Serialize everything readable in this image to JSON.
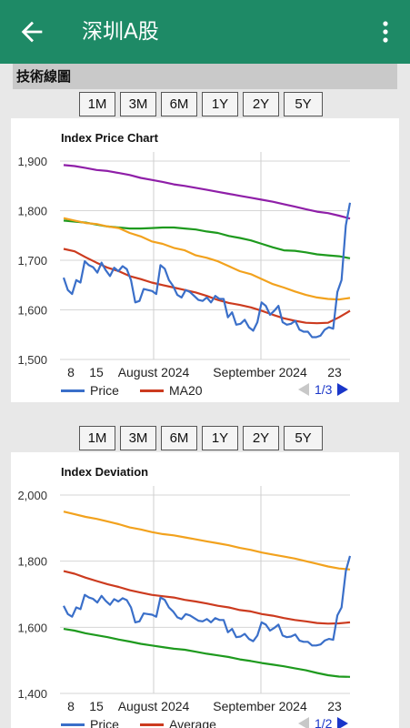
{
  "appbar": {
    "title": "深圳A股",
    "back_icon": "arrow-left-icon",
    "more_icon": "more-vert-icon",
    "color": "#1e8a66"
  },
  "section": {
    "title": "技術線圖"
  },
  "range_buttons": [
    "1M",
    "3M",
    "6M",
    "1Y",
    "2Y",
    "5Y"
  ],
  "chart1": {
    "title": "Index Price Chart",
    "legend": [
      {
        "label": "Price",
        "color": "#3a6fc9"
      },
      {
        "label": "MA20",
        "color": "#cc3b1f"
      }
    ],
    "pager": "1/3"
  },
  "chart2": {
    "title": "Index Deviation",
    "legend": [
      {
        "label": "Price",
        "color": "#3a6fc9"
      },
      {
        "label": "Average",
        "color": "#cc3b1f"
      }
    ],
    "pager": "1/2"
  },
  "chart_data": [
    {
      "type": "line",
      "title": "Index Price Chart",
      "x_ticks": [
        "8",
        "15",
        "August 2024",
        "September 2024",
        "23"
      ],
      "ylim": [
        1500,
        1900
      ],
      "y_ticks": [
        "1,500",
        "1,600",
        "1,700",
        "1,800",
        "1,900"
      ],
      "series": [
        {
          "name": "Price",
          "color": "#3a6fc9",
          "values": [
            1665,
            1640,
            1632,
            1660,
            1655,
            1698,
            1690,
            1686,
            1675,
            1695,
            1680,
            1668,
            1685,
            1678,
            1688,
            1682,
            1660,
            1615,
            1618,
            1642,
            1640,
            1638,
            1632,
            1690,
            1683,
            1660,
            1648,
            1630,
            1625,
            1640,
            1636,
            1628,
            1620,
            1618,
            1625,
            1615,
            1628,
            1622,
            1622,
            1585,
            1595,
            1570,
            1572,
            1580,
            1565,
            1558,
            1575,
            1615,
            1608,
            1590,
            1598,
            1608,
            1575,
            1570,
            1572,
            1578,
            1560,
            1556,
            1556,
            1545,
            1545,
            1548,
            1560,
            1565,
            1562,
            1636,
            1660,
            1770,
            1816
          ]
        },
        {
          "name": "MA20",
          "color": "#cc3b1f",
          "values": [
            1723,
            1718,
            1706,
            1695,
            1685,
            1678,
            1668,
            1662,
            1655,
            1650,
            1645,
            1640,
            1635,
            1628,
            1620,
            1614,
            1610,
            1605,
            1598,
            1590,
            1583,
            1578,
            1574,
            1573,
            1574,
            1585,
            1598
          ]
        },
        {
          "name": "",
          "color": "#f2a21e",
          "values": [
            1785,
            1780,
            1775,
            1773,
            1768,
            1765,
            1755,
            1748,
            1738,
            1733,
            1725,
            1720,
            1710,
            1705,
            1698,
            1688,
            1678,
            1672,
            1662,
            1652,
            1645,
            1637,
            1630,
            1625,
            1622,
            1621,
            1624
          ]
        },
        {
          "name": "",
          "color": "#1e9a1e",
          "values": [
            1780,
            1778,
            1776,
            1772,
            1768,
            1766,
            1764,
            1764,
            1765,
            1766,
            1766,
            1764,
            1762,
            1758,
            1755,
            1749,
            1745,
            1740,
            1733,
            1726,
            1720,
            1719,
            1716,
            1712,
            1710,
            1708,
            1704
          ]
        },
        {
          "name": "",
          "color": "#8f1fa8",
          "values": [
            1892,
            1890,
            1886,
            1882,
            1880,
            1876,
            1872,
            1866,
            1862,
            1858,
            1853,
            1850,
            1846,
            1842,
            1838,
            1834,
            1830,
            1826,
            1822,
            1818,
            1813,
            1808,
            1803,
            1798,
            1795,
            1790,
            1784
          ]
        }
      ]
    },
    {
      "type": "line",
      "title": "Index Deviation",
      "x_ticks": [
        "8",
        "15",
        "August 2024",
        "September 2024",
        "23"
      ],
      "ylim": [
        1400,
        2000
      ],
      "y_ticks": [
        "1,400",
        "1,600",
        "1,800",
        "2,000"
      ],
      "series": [
        {
          "name": "Price",
          "color": "#3a6fc9",
          "values": [
            1665,
            1640,
            1632,
            1660,
            1655,
            1698,
            1690,
            1686,
            1675,
            1695,
            1680,
            1668,
            1685,
            1678,
            1688,
            1682,
            1660,
            1615,
            1618,
            1642,
            1640,
            1638,
            1632,
            1690,
            1683,
            1660,
            1648,
            1630,
            1625,
            1640,
            1636,
            1628,
            1620,
            1618,
            1625,
            1615,
            1628,
            1622,
            1622,
            1585,
            1595,
            1570,
            1572,
            1580,
            1565,
            1558,
            1575,
            1615,
            1608,
            1590,
            1598,
            1608,
            1575,
            1570,
            1572,
            1578,
            1560,
            1556,
            1556,
            1545,
            1545,
            1548,
            1560,
            1565,
            1562,
            1636,
            1660,
            1770,
            1816
          ]
        },
        {
          "name": "Average",
          "color": "#cc3b1f",
          "values": [
            1770,
            1762,
            1750,
            1740,
            1730,
            1722,
            1712,
            1705,
            1698,
            1694,
            1690,
            1683,
            1678,
            1672,
            1665,
            1660,
            1652,
            1648,
            1640,
            1635,
            1628,
            1622,
            1618,
            1613,
            1611,
            1612,
            1615
          ]
        },
        {
          "name": "",
          "color": "#f2a21e",
          "values": [
            1950,
            1942,
            1934,
            1928,
            1920,
            1912,
            1902,
            1896,
            1888,
            1882,
            1878,
            1872,
            1866,
            1860,
            1854,
            1848,
            1840,
            1834,
            1826,
            1820,
            1814,
            1808,
            1800,
            1792,
            1784,
            1778,
            1775
          ]
        },
        {
          "name": "",
          "color": "#1e9a1e",
          "values": [
            1595,
            1590,
            1582,
            1576,
            1570,
            1563,
            1557,
            1550,
            1545,
            1540,
            1535,
            1532,
            1526,
            1520,
            1515,
            1510,
            1503,
            1498,
            1492,
            1487,
            1482,
            1476,
            1470,
            1462,
            1455,
            1451,
            1450
          ]
        }
      ]
    }
  ]
}
